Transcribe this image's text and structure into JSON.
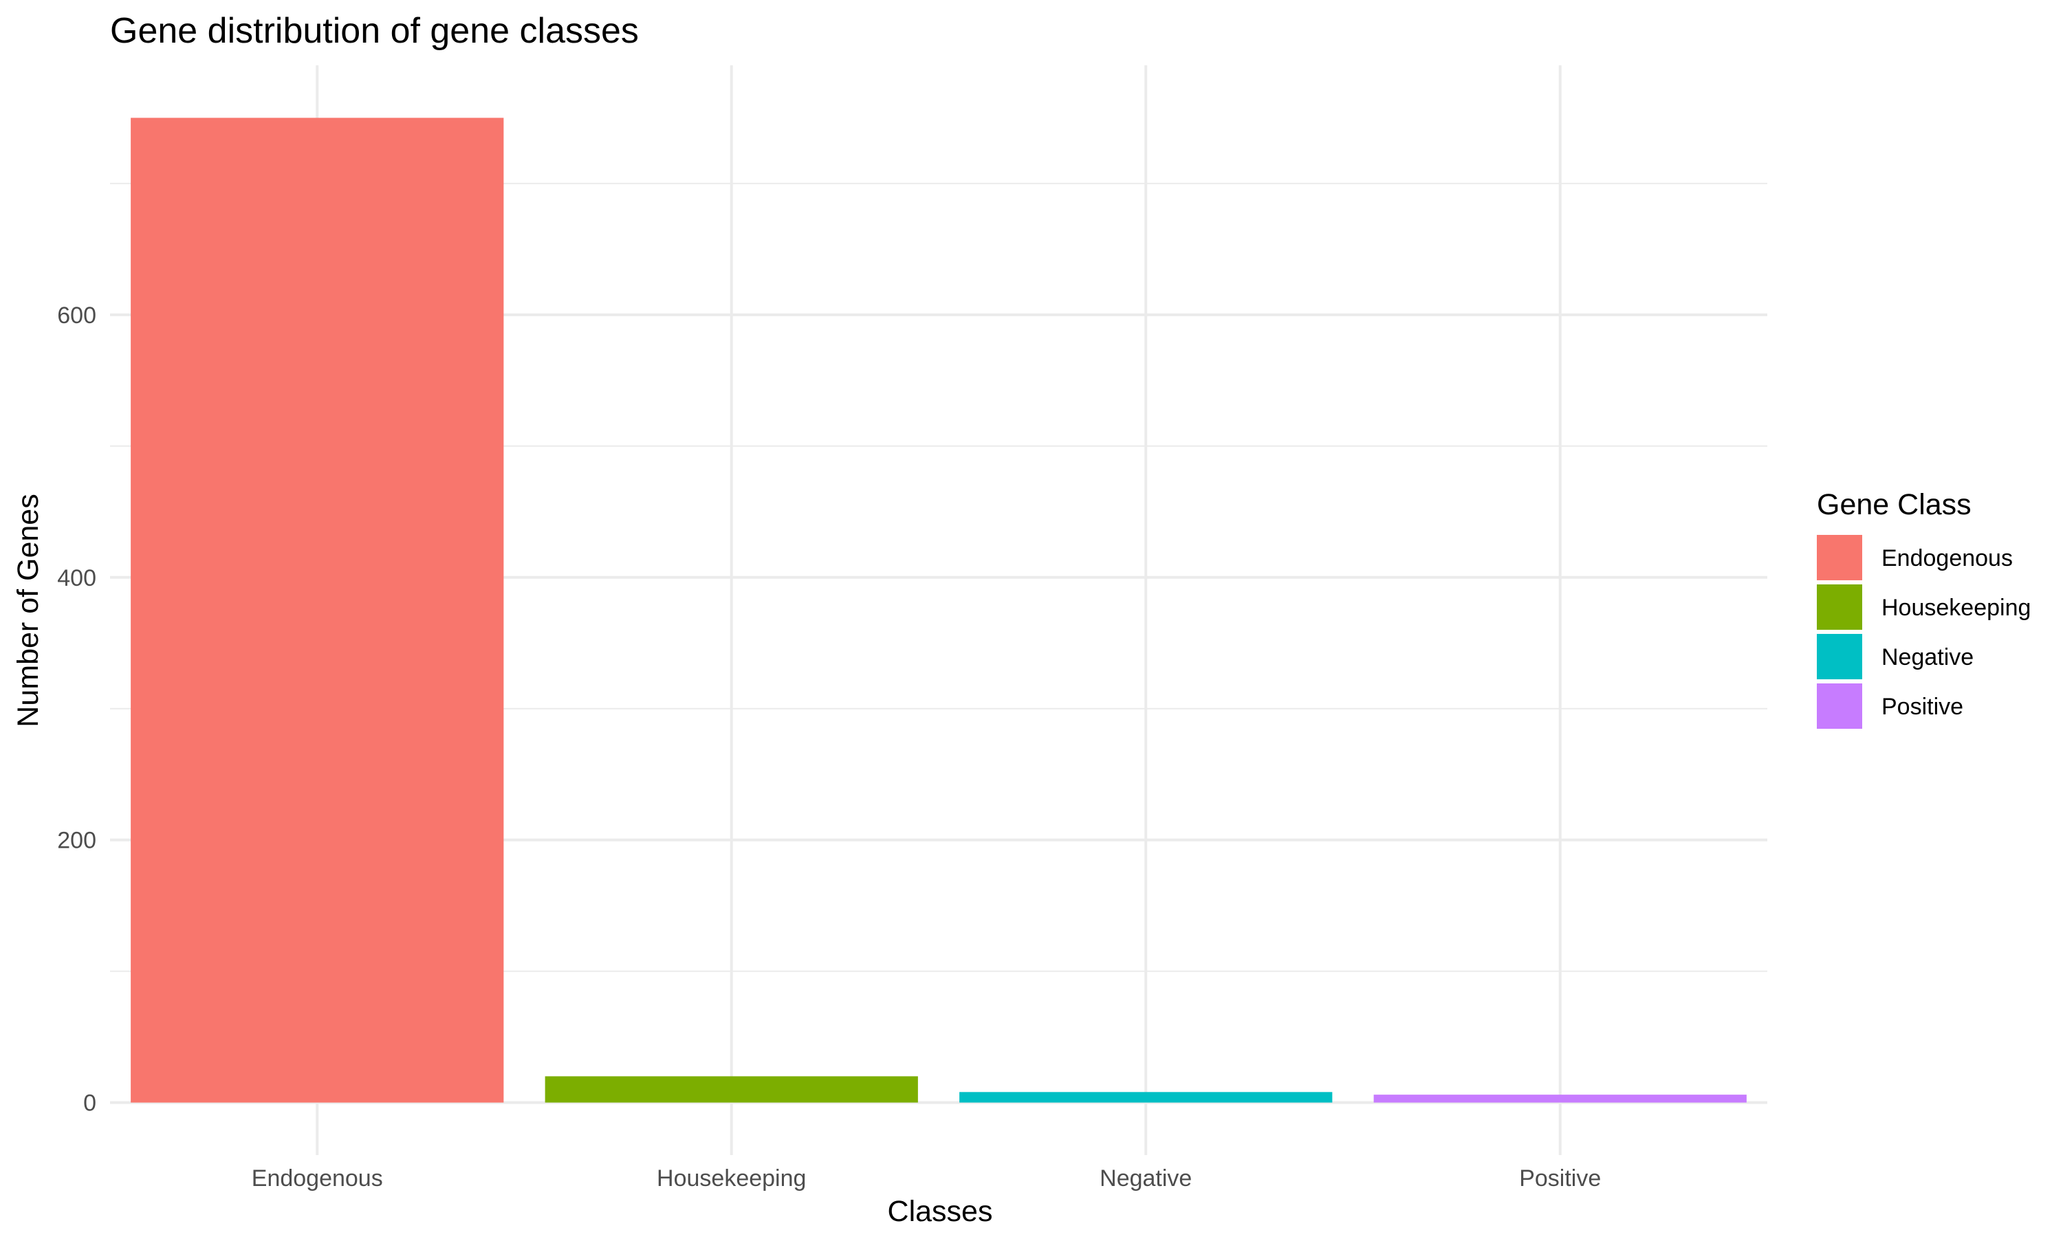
{
  "chart_data": {
    "type": "bar",
    "title": "Gene distribution of gene classes",
    "xlabel": "Classes",
    "ylabel": "Number of Genes",
    "categories": [
      "Endogenous",
      "Housekeeping",
      "Negative",
      "Positive"
    ],
    "values": [
      750,
      20,
      8,
      6
    ],
    "colors": [
      "#F8766D",
      "#7CAE00",
      "#00BFC4",
      "#C77CFF"
    ],
    "ylim": [
      -40,
      790
    ],
    "yticks": [
      0,
      200,
      400,
      600
    ],
    "yticks_minor": [
      100,
      300,
      500,
      700
    ],
    "grid": true,
    "legend": {
      "title": "Gene Class",
      "position": "right",
      "entries": [
        "Endogenous",
        "Housekeeping",
        "Negative",
        "Positive"
      ]
    }
  }
}
